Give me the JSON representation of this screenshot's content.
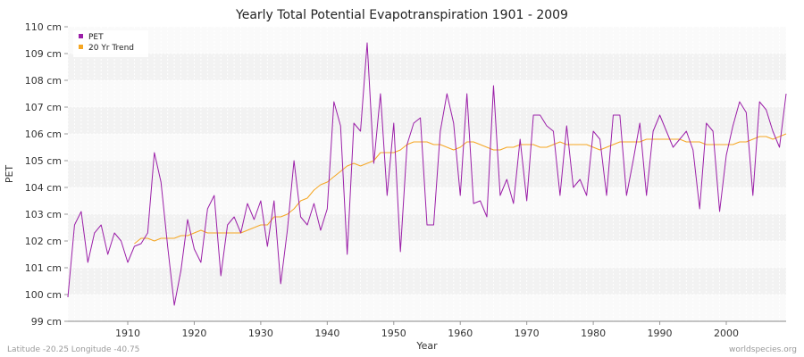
{
  "chart_data": {
    "type": "line",
    "title": "Yearly Total Potential Evapotranspiration 1901 - 2009",
    "xlabel": "Year",
    "ylabel": "PET",
    "xlim": [
      1901,
      2009
    ],
    "ylim": [
      99,
      110
    ],
    "x_ticks": [
      1910,
      1920,
      1930,
      1940,
      1950,
      1960,
      1970,
      1980,
      1990,
      2000
    ],
    "y_ticks": [
      {
        "value": 99,
        "label": "99 cm"
      },
      {
        "value": 100,
        "label": "100 cm"
      },
      {
        "value": 101,
        "label": "101 cm"
      },
      {
        "value": 102,
        "label": "102 cm"
      },
      {
        "value": 103,
        "label": "103 cm"
      },
      {
        "value": 104,
        "label": "104 cm"
      },
      {
        "value": 105,
        "label": "105 cm"
      },
      {
        "value": 106,
        "label": "106 cm"
      },
      {
        "value": 107,
        "label": "107 cm"
      },
      {
        "value": 108,
        "label": "108 cm"
      },
      {
        "value": 109,
        "label": "109 cm"
      },
      {
        "value": 110,
        "label": "110 cm"
      }
    ],
    "legend": [
      {
        "name": "PET",
        "color": "#9b1fa8"
      },
      {
        "name": "20 Yr Trend",
        "color": "#f5a623"
      }
    ],
    "series": [
      {
        "name": "PET",
        "color": "#9b1fa8",
        "x_start": 1901,
        "values": [
          99.9,
          102.6,
          103.1,
          101.2,
          102.3,
          102.6,
          101.5,
          102.3,
          102.0,
          101.2,
          101.8,
          101.9,
          102.3,
          105.3,
          104.2,
          101.8,
          99.6,
          100.9,
          102.8,
          101.7,
          101.2,
          103.2,
          103.7,
          100.7,
          102.6,
          102.9,
          102.3,
          103.4,
          102.8,
          103.5,
          101.8,
          103.5,
          100.4,
          102.4,
          105.0,
          102.9,
          102.6,
          103.4,
          102.4,
          103.2,
          107.2,
          106.3,
          101.5,
          106.4,
          106.1,
          109.4,
          104.9,
          107.5,
          103.7,
          106.4,
          101.6,
          105.6,
          106.4,
          106.6,
          102.6,
          102.6,
          106.1,
          107.5,
          106.4,
          103.7,
          107.5,
          103.4,
          103.5,
          102.9,
          107.8,
          103.7,
          104.3,
          103.4,
          105.8,
          103.5,
          106.7,
          106.7,
          106.3,
          106.1,
          103.7,
          106.3,
          104.0,
          104.3,
          103.7,
          106.1,
          105.8,
          103.7,
          106.7,
          106.7,
          103.7,
          105.0,
          106.4,
          103.7,
          106.1,
          106.7,
          106.1,
          105.5,
          105.8,
          106.1,
          105.4,
          103.2,
          106.4,
          106.1,
          103.1,
          105.2,
          106.3,
          107.2,
          106.8,
          103.7,
          107.2,
          106.9,
          106.1,
          105.5,
          107.5
        ]
      },
      {
        "name": "20 Yr Trend",
        "color": "#f5a623",
        "x_start": 1911,
        "values": [
          101.9,
          102.1,
          102.1,
          102.0,
          102.1,
          102.1,
          102.1,
          102.2,
          102.2,
          102.3,
          102.4,
          102.3,
          102.3,
          102.3,
          102.3,
          102.3,
          102.3,
          102.4,
          102.5,
          102.6,
          102.6,
          102.9,
          102.9,
          103.0,
          103.2,
          103.5,
          103.6,
          103.9,
          104.1,
          104.2,
          104.4,
          104.6,
          104.8,
          104.9,
          104.8,
          104.9,
          105.0,
          105.3,
          105.3,
          105.3,
          105.4,
          105.6,
          105.7,
          105.7,
          105.7,
          105.6,
          105.6,
          105.5,
          105.4,
          105.5,
          105.7,
          105.7,
          105.6,
          105.5,
          105.4,
          105.4,
          105.5,
          105.5,
          105.6,
          105.6,
          105.6,
          105.5,
          105.5,
          105.6,
          105.7,
          105.6,
          105.6,
          105.6,
          105.6,
          105.5,
          105.4,
          105.5,
          105.6,
          105.7,
          105.7,
          105.7,
          105.7,
          105.8,
          105.8,
          105.8,
          105.8,
          105.8,
          105.8,
          105.7,
          105.7,
          105.7,
          105.6,
          105.6,
          105.6,
          105.6,
          105.6,
          105.7,
          105.7,
          105.8,
          105.9,
          105.9,
          105.8,
          105.9,
          106.0
        ]
      }
    ]
  },
  "footer": {
    "location": "Latitude -20.25 Longitude -40.75",
    "source": "worldspecies.org"
  }
}
